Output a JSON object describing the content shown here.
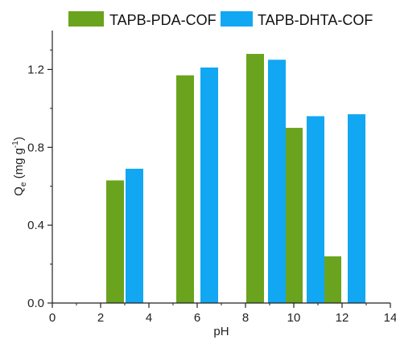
{
  "chart_data": {
    "type": "bar",
    "xlabel": "pH",
    "ylabel": {
      "main": "Q",
      "sub": "e",
      "unit": " (mg g",
      "sup": "-1",
      "close": ")"
    },
    "xlim": [
      0,
      14
    ],
    "ylim": [
      0,
      1.4
    ],
    "xticks": [
      "0",
      "2",
      "4",
      "6",
      "8",
      "10",
      "12",
      "14"
    ],
    "yticks": [
      "0.0",
      "0.4",
      "0.8",
      "1.2"
    ],
    "grid": false,
    "legend_position": "top",
    "series": [
      {
        "name": "TAPB-PDA-COF",
        "color": "#6aa31d",
        "x": [
          2.6,
          5.5,
          8.4,
          10.0,
          11.6
        ],
        "values": [
          0.63,
          1.17,
          1.28,
          0.9,
          0.24
        ]
      },
      {
        "name": "TAPB-DHTA-COF",
        "color": "#11a7f2",
        "x": [
          3.4,
          6.5,
          9.3,
          10.9,
          12.6
        ],
        "values": [
          0.69,
          1.21,
          1.25,
          0.96,
          0.97
        ]
      }
    ]
  }
}
